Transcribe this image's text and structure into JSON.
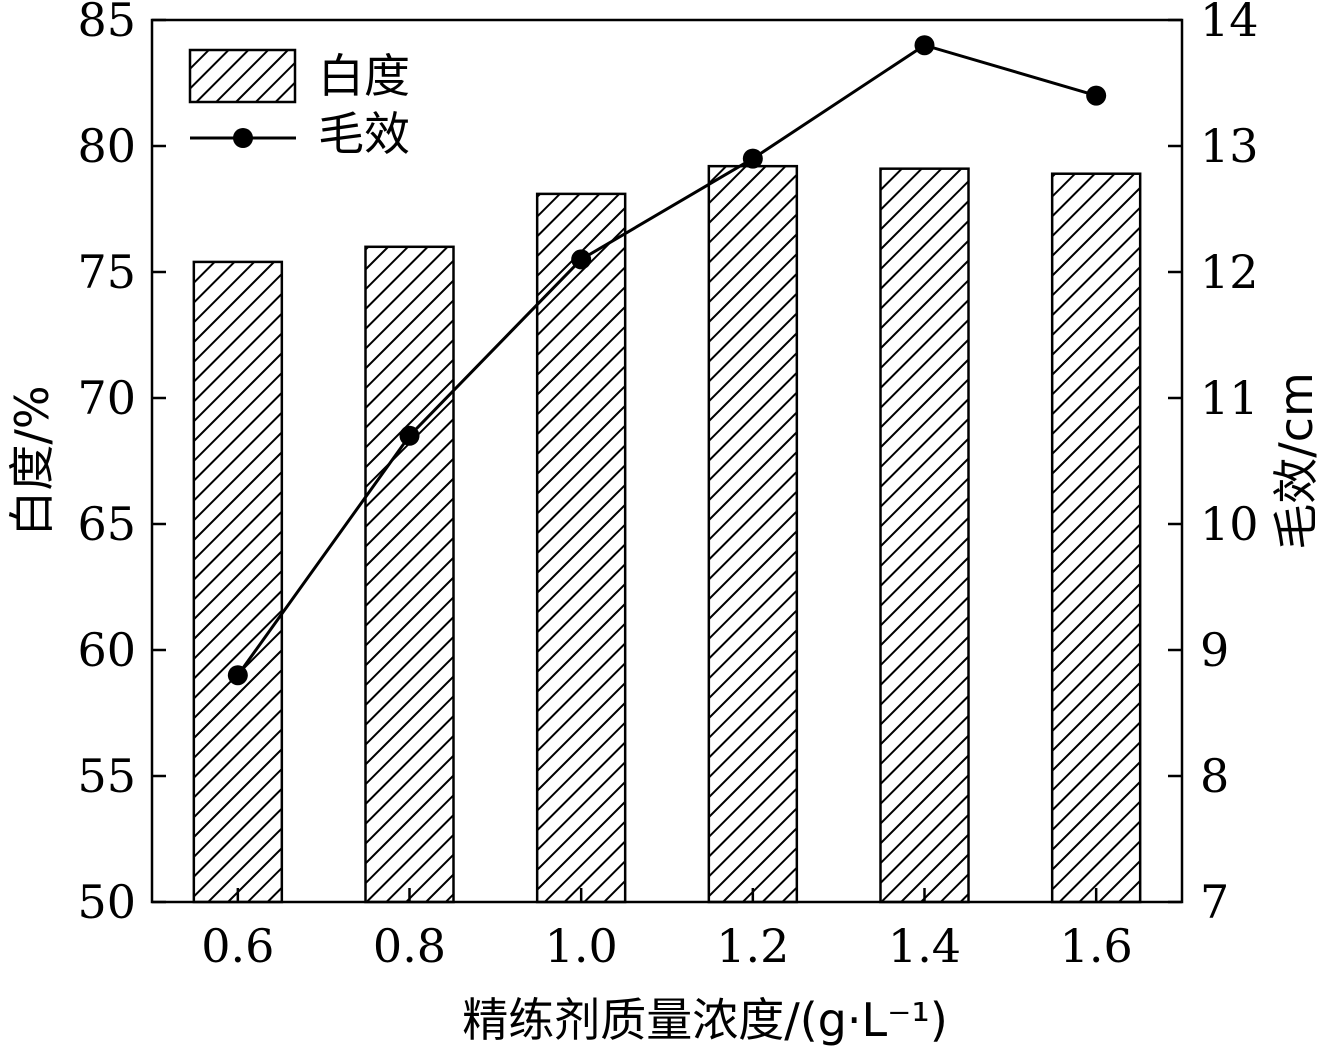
{
  "chart_data": {
    "type": "bar",
    "categories": [
      "0.6",
      "0.8",
      "1.0",
      "1.2",
      "1.4",
      "1.6"
    ],
    "series": [
      {
        "name": "白度",
        "type": "bar",
        "axis": "left",
        "values": [
          75.4,
          76.0,
          78.1,
          79.2,
          79.1,
          78.9
        ]
      },
      {
        "name": "毛效",
        "type": "line",
        "axis": "right",
        "values": [
          8.8,
          10.7,
          12.1,
          12.9,
          13.8,
          13.4
        ]
      }
    ],
    "xlabel": "精练剂质量浓度/(g·L⁻¹)",
    "ylabel": "白度/%",
    "y2label": "毛效/cm",
    "ylim": [
      50,
      85
    ],
    "y2lim": [
      7,
      14
    ],
    "yticks": [
      "50",
      "55",
      "60",
      "65",
      "70",
      "75",
      "80",
      "85"
    ],
    "y2ticks": [
      "7",
      "8",
      "9",
      "10",
      "11",
      "12",
      "13",
      "14"
    ],
    "legend": {
      "placement": "top-left",
      "entries": [
        "白度",
        "毛效"
      ]
    },
    "grid": false
  }
}
